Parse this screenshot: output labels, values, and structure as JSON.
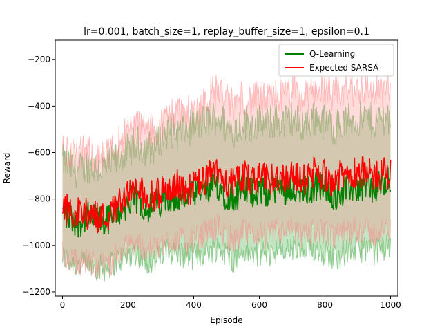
{
  "chart_data": {
    "type": "line",
    "title": "lr=0.001, batch_size=1, replay_buffer_size=1, epsilon=0.1",
    "xlabel": "Episode",
    "ylabel": "Reward",
    "xlim": [
      -22,
      1022
    ],
    "ylim": [
      -1218,
      -116
    ],
    "xticks": [
      0,
      200,
      400,
      600,
      800,
      1000
    ],
    "yticks": [
      -1200,
      -1000,
      -800,
      -600,
      -400,
      -200
    ],
    "legend_position": "upper-right",
    "grid": false,
    "series": [
      {
        "name": "Q-Learning",
        "color": "#008000",
        "band_color": "#2ca02c",
        "x": [
          0,
          25,
          50,
          75,
          100,
          125,
          150,
          175,
          200,
          225,
          250,
          275,
          300,
          325,
          350,
          375,
          400,
          425,
          450,
          475,
          500,
          525,
          550,
          575,
          600,
          625,
          650,
          675,
          700,
          725,
          750,
          775,
          800,
          825,
          850,
          875,
          900,
          925,
          950,
          975,
          1000
        ],
        "mean": [
          -860,
          -880,
          -900,
          -880,
          -890,
          -900,
          -880,
          -850,
          -820,
          -800,
          -830,
          -840,
          -810,
          -780,
          -800,
          -790,
          -790,
          -770,
          -760,
          -740,
          -780,
          -790,
          -760,
          -770,
          -760,
          -770,
          -750,
          -760,
          -740,
          -770,
          -760,
          -740,
          -760,
          -780,
          -770,
          -750,
          -750,
          -740,
          -760,
          -740,
          -730
        ],
        "lower": [
          -1050,
          -1070,
          -1090,
          -1080,
          -1090,
          -1100,
          -1080,
          -1060,
          -1040,
          -1030,
          -1060,
          -1070,
          -1050,
          -1020,
          -1040,
          -1040,
          -1050,
          -1030,
          -1020,
          -1010,
          -1040,
          -1060,
          -1030,
          -1040,
          -1030,
          -1040,
          -1020,
          -1030,
          -1010,
          -1040,
          -1030,
          -1010,
          -1030,
          -1050,
          -1040,
          -1020,
          -1020,
          -1010,
          -1030,
          -1010,
          -1000
        ],
        "upper": [
          -640,
          -660,
          -680,
          -650,
          -660,
          -670,
          -650,
          -620,
          -590,
          -560,
          -580,
          -580,
          -540,
          -500,
          -520,
          -500,
          -490,
          -470,
          -460,
          -440,
          -490,
          -500,
          -470,
          -480,
          -470,
          -480,
          -460,
          -470,
          -450,
          -480,
          -470,
          -450,
          -470,
          -490,
          -480,
          -460,
          -460,
          -450,
          -470,
          -450,
          -440
        ]
      },
      {
        "name": "Expected SARSA",
        "color": "#ff0000",
        "band_color": "#ff7f7f",
        "x": [
          0,
          25,
          50,
          75,
          100,
          125,
          150,
          175,
          200,
          225,
          250,
          275,
          300,
          325,
          350,
          375,
          400,
          425,
          450,
          475,
          500,
          525,
          550,
          575,
          600,
          625,
          650,
          675,
          700,
          725,
          750,
          775,
          800,
          825,
          850,
          875,
          900,
          925,
          950,
          975,
          1000
        ],
        "mean": [
          -840,
          -850,
          -860,
          -860,
          -870,
          -880,
          -860,
          -800,
          -780,
          -760,
          -780,
          -790,
          -770,
          -750,
          -740,
          -760,
          -750,
          -730,
          -700,
          -680,
          -720,
          -740,
          -700,
          -720,
          -710,
          -720,
          -700,
          -710,
          -690,
          -720,
          -710,
          -680,
          -700,
          -720,
          -700,
          -690,
          -680,
          -690,
          -700,
          -690,
          -690
        ],
        "lower": [
          -1040,
          -1060,
          -1070,
          -1070,
          -1080,
          -1090,
          -1070,
          -1030,
          -1010,
          -990,
          -1010,
          -1020,
          -1000,
          -980,
          -970,
          -990,
          -980,
          -960,
          -930,
          -920,
          -960,
          -980,
          -940,
          -960,
          -950,
          -960,
          -940,
          -950,
          -930,
          -960,
          -950,
          -930,
          -950,
          -970,
          -950,
          -940,
          -930,
          -940,
          -950,
          -940,
          -940
        ],
        "upper": [
          -600,
          -600,
          -610,
          -600,
          -620,
          -630,
          -600,
          -540,
          -510,
          -480,
          -500,
          -510,
          -480,
          -440,
          -420,
          -440,
          -420,
          -390,
          -350,
          -330,
          -380,
          -400,
          -360,
          -380,
          -370,
          -380,
          -350,
          -360,
          -330,
          -370,
          -360,
          -320,
          -340,
          -360,
          -340,
          -330,
          -320,
          -330,
          -340,
          -330,
          -330
        ]
      }
    ]
  }
}
